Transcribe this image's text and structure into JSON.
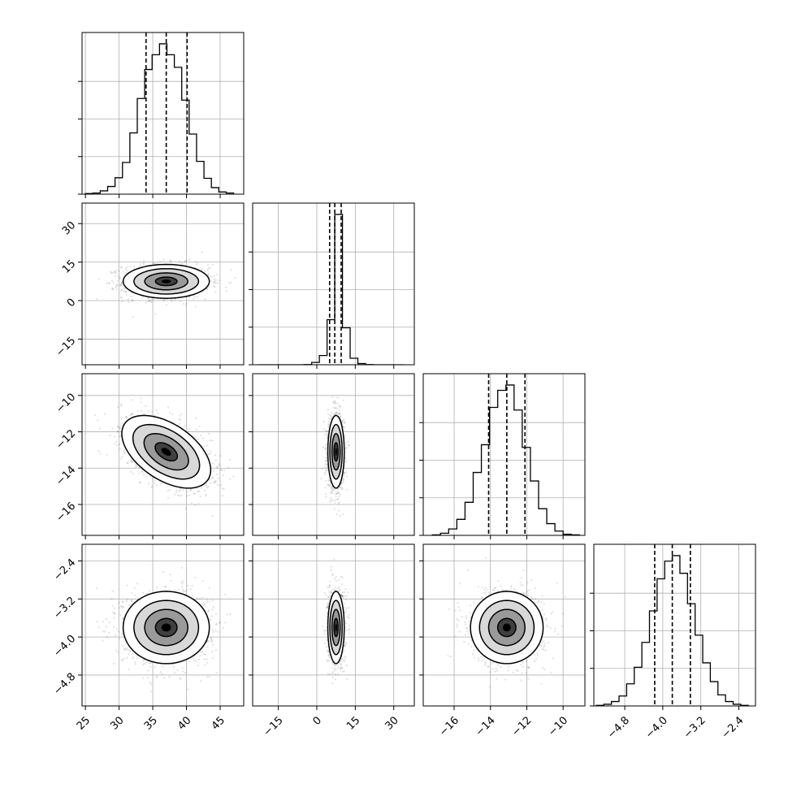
{
  "chart_data": {
    "type": "corner",
    "grid": true,
    "parameters": [
      {
        "ticks": [
          25,
          30,
          35,
          40,
          45
        ],
        "tick_labels": [
          "25",
          "30",
          "35",
          "40",
          "45"
        ],
        "range": [
          24.5,
          48.5
        ],
        "quantiles": [
          34,
          37,
          40.1
        ],
        "hist": {
          "edges": [
            25,
            26.1,
            27.2,
            28.3,
            29.4,
            30.5,
            31.6,
            32.7,
            33.8,
            34.9,
            36.0,
            37.1,
            38.2,
            39.3,
            40.4,
            41.5,
            42.6,
            43.7,
            44.8,
            45.9,
            47.0
          ],
          "counts": [
            1,
            2,
            6,
            14,
            30,
            58,
            112,
            175,
            228,
            255,
            275,
            255,
            232,
            172,
            110,
            60,
            29,
            12,
            4,
            2
          ]
        }
      },
      {
        "ticks": [
          -15,
          0,
          15,
          30
        ],
        "tick_labels": [
          "−15",
          "0",
          "15",
          "30"
        ],
        "range": [
          -25,
          38
        ],
        "quantiles": [
          5,
          7,
          9.5
        ],
        "hist": {
          "edges": [
            -23,
            -20,
            -17,
            -14,
            -11,
            -8,
            -5,
            -2,
            1,
            4,
            7,
            10,
            13,
            16,
            19,
            22,
            25,
            28,
            31,
            34
          ],
          "counts": [
            0,
            0,
            0,
            0,
            0,
            0,
            1,
            10,
            40,
            195,
            650,
            160,
            28,
            5,
            1,
            0,
            0,
            0,
            0
          ]
        }
      },
      {
        "ticks": [
          -16,
          -14,
          -12,
          -10
        ],
        "tick_labels": [
          "−16",
          "−14",
          "−12",
          "−10"
        ],
        "range": [
          -17.7,
          -8.8
        ],
        "quantiles": [
          -14.1,
          -13.1,
          -12.1
        ],
        "hist": {
          "edges": [
            -17.2,
            -16.75,
            -16.3,
            -15.85,
            -15.4,
            -14.95,
            -14.5,
            -14.05,
            -13.6,
            -13.15,
            -12.7,
            -12.25,
            -11.8,
            -11.35,
            -10.9,
            -10.45,
            -10.0,
            -9.55,
            -9.1
          ],
          "counts": [
            1,
            4,
            12,
            30,
            62,
            118,
            170,
            240,
            272,
            282,
            235,
            165,
            102,
            50,
            22,
            8,
            2,
            1
          ]
        }
      },
      {
        "ticks": [
          -4.8,
          -4.0,
          -3.2,
          -2.4
        ],
        "tick_labels": [
          "−4.8",
          "−4.0",
          "−3.2",
          "−2.4"
        ],
        "range": [
          -5.45,
          -2.05
        ],
        "quantiles": [
          -4.17,
          -3.8,
          -3.42
        ],
        "hist": {
          "edges": [
            -5.4,
            -5.24,
            -5.08,
            -4.92,
            -4.76,
            -4.6,
            -4.44,
            -4.28,
            -4.12,
            -3.96,
            -3.8,
            -3.64,
            -3.48,
            -3.32,
            -3.16,
            -3.0,
            -2.84,
            -2.68,
            -2.52,
            -2.36,
            -2.2
          ],
          "counts": [
            1,
            3,
            8,
            18,
            40,
            70,
            115,
            172,
            230,
            262,
            272,
            240,
            185,
            128,
            78,
            44,
            20,
            8,
            3,
            1
          ]
        }
      }
    ],
    "pairs": [
      {
        "row": 1,
        "col": 0,
        "center": [
          37,
          7.5
        ],
        "sigma": [
          3.2,
          3.3
        ],
        "rho": 0.0
      },
      {
        "row": 2,
        "col": 0,
        "center": [
          37,
          -13.1
        ],
        "sigma": [
          3.3,
          1.0
        ],
        "rho": -0.5
      },
      {
        "row": 2,
        "col": 1,
        "center": [
          7.5,
          -13.1
        ],
        "sigma": [
          1.6,
          1.0
        ],
        "rho": 0.0
      },
      {
        "row": 3,
        "col": 0,
        "center": [
          37,
          -3.8
        ],
        "sigma": [
          3.2,
          0.38
        ],
        "rho": 0.0
      },
      {
        "row": 3,
        "col": 1,
        "center": [
          7.5,
          -3.8
        ],
        "sigma": [
          1.6,
          0.38
        ],
        "rho": 0.0
      },
      {
        "row": 3,
        "col": 2,
        "center": [
          -13.1,
          -3.8
        ],
        "sigma": [
          1.0,
          0.38
        ],
        "rho": 0.0
      }
    ]
  }
}
